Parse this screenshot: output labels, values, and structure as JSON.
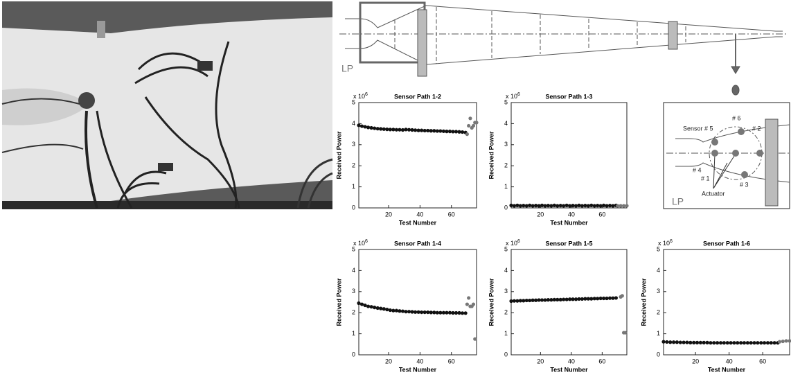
{
  "diagram": {
    "label": "LP"
  },
  "inset": {
    "sensor5": "Sensor # 5",
    "sensor6": "# 6",
    "sensor2": "# 2",
    "sensor4": "# 4",
    "sensor1": "# 1",
    "actuator": "Actuator",
    "sensor3": "# 3",
    "label": "LP"
  },
  "chart_data": [
    {
      "type": "scatter",
      "title": "Sensor Path 1-2",
      "xlabel": "Test Number",
      "ylabel": "Received Power",
      "y_offset_base": "x 10",
      "y_offset_exp": "6",
      "xlim": [
        1,
        76
      ],
      "ylim": [
        0,
        5
      ],
      "xticks": [
        20,
        40,
        60
      ],
      "yticks": [
        0,
        1,
        2,
        3,
        4,
        5
      ],
      "series": [
        {
          "color": "#111111",
          "x": [
            1,
            3,
            5,
            7,
            9,
            11,
            13,
            15,
            17,
            19,
            21,
            23,
            25,
            27,
            29,
            31,
            33,
            35,
            37,
            39,
            41,
            43,
            45,
            47,
            49,
            51,
            53,
            55,
            57,
            59,
            61,
            63,
            65,
            67,
            69
          ],
          "values": [
            3.92,
            3.88,
            3.85,
            3.82,
            3.8,
            3.78,
            3.76,
            3.75,
            3.74,
            3.73,
            3.72,
            3.72,
            3.71,
            3.71,
            3.7,
            3.72,
            3.71,
            3.7,
            3.69,
            3.68,
            3.68,
            3.67,
            3.67,
            3.66,
            3.66,
            3.65,
            3.65,
            3.64,
            3.63,
            3.63,
            3.62,
            3.62,
            3.61,
            3.6,
            3.58
          ]
        },
        {
          "color": "#777777",
          "x": [
            70,
            71,
            72,
            73,
            74,
            75,
            76
          ],
          "values": [
            3.5,
            3.9,
            4.25,
            3.8,
            3.9,
            4.05,
            4.05
          ]
        }
      ]
    },
    {
      "type": "scatter",
      "title": "Sensor Path 1-3",
      "xlabel": "Test Number",
      "ylabel": "Received Power",
      "y_offset_base": "x 10",
      "y_offset_exp": "6",
      "xlim": [
        1,
        76
      ],
      "ylim": [
        0,
        5
      ],
      "xticks": [
        20,
        40,
        60
      ],
      "yticks": [
        0,
        1,
        2,
        3,
        4,
        5
      ],
      "series": [
        {
          "color": "#111111",
          "x": [
            1,
            3,
            5,
            7,
            9,
            11,
            13,
            15,
            17,
            19,
            21,
            23,
            25,
            27,
            29,
            31,
            33,
            35,
            37,
            39,
            41,
            43,
            45,
            47,
            49,
            51,
            53,
            55,
            57,
            59,
            61,
            63,
            65,
            67,
            69
          ],
          "values": [
            0.12,
            0.1,
            0.12,
            0.1,
            0.11,
            0.1,
            0.12,
            0.1,
            0.11,
            0.1,
            0.12,
            0.1,
            0.11,
            0.1,
            0.12,
            0.1,
            0.11,
            0.1,
            0.12,
            0.1,
            0.11,
            0.1,
            0.12,
            0.1,
            0.11,
            0.1,
            0.12,
            0.1,
            0.11,
            0.1,
            0.12,
            0.1,
            0.11,
            0.1,
            0.12
          ]
        },
        {
          "color": "#777777",
          "x": [
            70,
            72,
            74,
            76
          ],
          "values": [
            0.1,
            0.1,
            0.1,
            0.1
          ]
        }
      ]
    },
    {
      "type": "scatter",
      "title": "Sensor Path 1-4",
      "xlabel": "Test Number",
      "ylabel": "Received Power",
      "y_offset_base": "x 10",
      "y_offset_exp": "6",
      "xlim": [
        1,
        76
      ],
      "ylim": [
        0,
        5
      ],
      "xticks": [
        20,
        40,
        60
      ],
      "yticks": [
        0,
        1,
        2,
        3,
        4,
        5
      ],
      "series": [
        {
          "color": "#111111",
          "x": [
            1,
            3,
            5,
            7,
            9,
            11,
            13,
            15,
            17,
            19,
            21,
            23,
            25,
            27,
            29,
            31,
            33,
            35,
            37,
            39,
            41,
            43,
            45,
            47,
            49,
            51,
            53,
            55,
            57,
            59,
            61,
            63,
            65,
            67,
            69
          ],
          "values": [
            2.45,
            2.4,
            2.35,
            2.3,
            2.28,
            2.25,
            2.22,
            2.2,
            2.18,
            2.15,
            2.12,
            2.1,
            2.1,
            2.08,
            2.07,
            2.05,
            2.05,
            2.04,
            2.03,
            2.03,
            2.02,
            2.02,
            2.02,
            2.01,
            2.01,
            2.0,
            2.0,
            2.0,
            2.0,
            2.0,
            1.99,
            1.99,
            1.99,
            1.98,
            1.98
          ]
        },
        {
          "color": "#777777",
          "x": [
            70,
            71,
            72,
            73,
            74,
            75
          ],
          "values": [
            2.4,
            2.7,
            2.3,
            2.3,
            2.4,
            0.75
          ]
        }
      ]
    },
    {
      "type": "scatter",
      "title": "Sensor Path 1-5",
      "xlabel": "Test Number",
      "ylabel": "Received Power",
      "y_offset_base": "x 10",
      "y_offset_exp": "6",
      "xlim": [
        1,
        76
      ],
      "ylim": [
        0,
        5
      ],
      "xticks": [
        20,
        40,
        60
      ],
      "yticks": [
        0,
        1,
        2,
        3,
        4,
        5
      ],
      "series": [
        {
          "color": "#111111",
          "x": [
            1,
            3,
            5,
            7,
            9,
            11,
            13,
            15,
            17,
            19,
            21,
            23,
            25,
            27,
            29,
            31,
            33,
            35,
            37,
            39,
            41,
            43,
            45,
            47,
            49,
            51,
            53,
            55,
            57,
            59,
            61,
            63,
            65,
            67,
            69
          ],
          "values": [
            2.55,
            2.56,
            2.56,
            2.57,
            2.57,
            2.58,
            2.58,
            2.59,
            2.59,
            2.6,
            2.6,
            2.6,
            2.61,
            2.61,
            2.62,
            2.62,
            2.62,
            2.63,
            2.63,
            2.64,
            2.64,
            2.64,
            2.65,
            2.65,
            2.66,
            2.66,
            2.66,
            2.67,
            2.67,
            2.68,
            2.68,
            2.68,
            2.69,
            2.69,
            2.7
          ]
        },
        {
          "color": "#777777",
          "x": [
            72,
            73,
            74,
            75
          ],
          "values": [
            2.75,
            2.8,
            1.05,
            1.05
          ]
        }
      ]
    },
    {
      "type": "scatter",
      "title": "Sensor Path 1-6",
      "xlabel": "Test Number",
      "ylabel": "Received Power",
      "y_offset_base": "x 10",
      "y_offset_exp": "6",
      "xlim": [
        1,
        76
      ],
      "ylim": [
        0,
        5
      ],
      "xticks": [
        20,
        40,
        60
      ],
      "yticks": [
        0,
        1,
        2,
        3,
        4,
        5
      ],
      "series": [
        {
          "color": "#111111",
          "x": [
            1,
            3,
            5,
            7,
            9,
            11,
            13,
            15,
            17,
            19,
            21,
            23,
            25,
            27,
            29,
            31,
            33,
            35,
            37,
            39,
            41,
            43,
            45,
            47,
            49,
            51,
            53,
            55,
            57,
            59,
            61,
            63,
            65,
            67,
            69
          ],
          "values": [
            0.62,
            0.61,
            0.6,
            0.6,
            0.6,
            0.59,
            0.59,
            0.59,
            0.58,
            0.58,
            0.58,
            0.58,
            0.58,
            0.58,
            0.57,
            0.57,
            0.57,
            0.57,
            0.57,
            0.57,
            0.57,
            0.57,
            0.57,
            0.57,
            0.57,
            0.57,
            0.57,
            0.57,
            0.57,
            0.57,
            0.57,
            0.57,
            0.57,
            0.57,
            0.57
          ]
        },
        {
          "color": "#777777",
          "x": [
            70,
            72,
            74,
            76
          ],
          "values": [
            0.62,
            0.64,
            0.66,
            0.66
          ]
        }
      ]
    }
  ]
}
